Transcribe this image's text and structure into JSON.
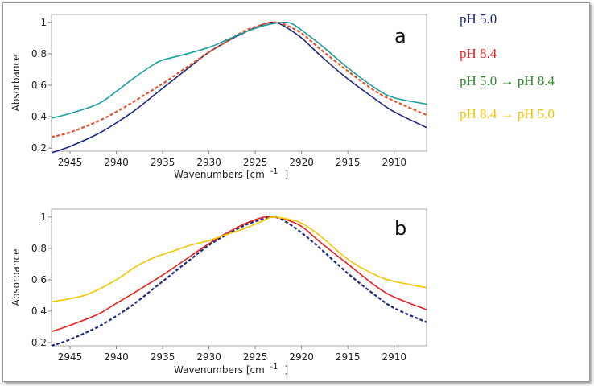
{
  "chart_data": [
    {
      "type": "line",
      "panel_label": "a",
      "xlabel": "Wavenumbers [cm",
      "xlabel_sup": "-1",
      "xlabel_tail": "]",
      "ylabel": "Absorbance",
      "xlim": [
        2947,
        2906.5
      ],
      "ylim": [
        0.18,
        1.05
      ],
      "x_ticks": [
        "2945",
        "2940",
        "2935",
        "2930",
        "2925",
        "2920",
        "2915",
        "2910"
      ],
      "y_ticks": [
        "1",
        "0.8",
        "0.6",
        "0.4",
        "0.2"
      ],
      "series": [
        {
          "name": "pH 5.0",
          "color": "#1e2a80",
          "dash": "solid",
          "x": [
            2947,
            2945,
            2942,
            2940,
            2938,
            2935,
            2932,
            2930,
            2928,
            2926,
            2924,
            2923,
            2922,
            2920,
            2918,
            2915,
            2912,
            2910,
            2906.5
          ],
          "y": [
            0.17,
            0.21,
            0.29,
            0.36,
            0.44,
            0.58,
            0.72,
            0.81,
            0.88,
            0.94,
            0.99,
            1.0,
            0.98,
            0.9,
            0.79,
            0.64,
            0.51,
            0.43,
            0.33
          ]
        },
        {
          "name": "pH 8.4",
          "color": "#e8502a",
          "dash": "dashed",
          "x": [
            2947,
            2945,
            2942,
            2940,
            2938,
            2935,
            2932,
            2930,
            2928,
            2926,
            2924,
            2923,
            2922,
            2920,
            2918,
            2915,
            2912,
            2910,
            2906.5
          ],
          "y": [
            0.27,
            0.3,
            0.37,
            0.43,
            0.5,
            0.61,
            0.73,
            0.81,
            0.88,
            0.95,
            0.99,
            1.0,
            0.99,
            0.93,
            0.83,
            0.69,
            0.56,
            0.5,
            0.41
          ]
        },
        {
          "name": "pH 5.0 → pH 8.4",
          "color": "#1aa0a0",
          "dash": "solid",
          "x": [
            2947,
            2945,
            2942,
            2940,
            2938,
            2936,
            2935,
            2933,
            2930,
            2928,
            2926,
            2924,
            2922,
            2921,
            2920,
            2918,
            2915,
            2912,
            2910,
            2906.5
          ],
          "y": [
            0.39,
            0.42,
            0.48,
            0.56,
            0.65,
            0.73,
            0.76,
            0.79,
            0.84,
            0.89,
            0.94,
            0.98,
            1.0,
            0.99,
            0.95,
            0.86,
            0.71,
            0.58,
            0.52,
            0.48
          ]
        }
      ]
    },
    {
      "type": "line",
      "panel_label": "b",
      "xlabel": "Wavenumbers [cm",
      "xlabel_sup": "-1",
      "xlabel_tail": "]",
      "ylabel": "Absorbance",
      "xlim": [
        2947,
        2906.5
      ],
      "ylim": [
        0.18,
        1.05
      ],
      "x_ticks": [
        "2945",
        "2940",
        "2935",
        "2930",
        "2925",
        "2920",
        "2915",
        "2910"
      ],
      "y_ticks": [
        "1",
        "0.8",
        "0.6",
        "0.4",
        "0.2"
      ],
      "series": [
        {
          "name": "pH 5.0",
          "color": "#1e2a80",
          "dash": "dashed",
          "x": [
            2947,
            2945,
            2942,
            2940,
            2938,
            2935,
            2932,
            2930,
            2928,
            2926,
            2924,
            2923,
            2922,
            2920,
            2918,
            2915,
            2912,
            2910,
            2906.5
          ],
          "y": [
            0.18,
            0.22,
            0.3,
            0.37,
            0.45,
            0.59,
            0.73,
            0.82,
            0.89,
            0.95,
            0.99,
            1.0,
            0.98,
            0.9,
            0.8,
            0.64,
            0.5,
            0.42,
            0.33
          ]
        },
        {
          "name": "pH 8.4",
          "color": "#e82020",
          "dash": "solid",
          "x": [
            2947,
            2945,
            2942,
            2940,
            2938,
            2935,
            2932,
            2930,
            2928,
            2926,
            2924,
            2923,
            2922,
            2920,
            2918,
            2915,
            2912,
            2910,
            2906.5
          ],
          "y": [
            0.27,
            0.31,
            0.38,
            0.45,
            0.52,
            0.63,
            0.75,
            0.83,
            0.9,
            0.96,
            1.0,
            1.0,
            0.99,
            0.94,
            0.84,
            0.7,
            0.56,
            0.49,
            0.41
          ]
        },
        {
          "name": "pH 8.4 → pH 5.0",
          "color": "#f5c400",
          "dash": "solid",
          "x": [
            2947,
            2945,
            2943,
            2940,
            2938,
            2936,
            2934,
            2932,
            2930,
            2928,
            2926,
            2924,
            2923,
            2921,
            2920,
            2918,
            2915,
            2912,
            2910,
            2906.5
          ],
          "y": [
            0.46,
            0.48,
            0.51,
            0.6,
            0.68,
            0.74,
            0.78,
            0.82,
            0.85,
            0.89,
            0.93,
            0.98,
            1.0,
            0.98,
            0.96,
            0.88,
            0.73,
            0.63,
            0.59,
            0.55
          ]
        }
      ]
    }
  ],
  "legend": [
    {
      "label": "pH 5.0",
      "color": "#1e2a80"
    },
    {
      "label": "pH 8.4",
      "color": "#e82020"
    },
    {
      "label": "pH 5.0 → pH 8.4",
      "color": "#2e8b2e"
    },
    {
      "label": "pH 8.4 → pH 5.0",
      "color": "#f5c400"
    }
  ]
}
